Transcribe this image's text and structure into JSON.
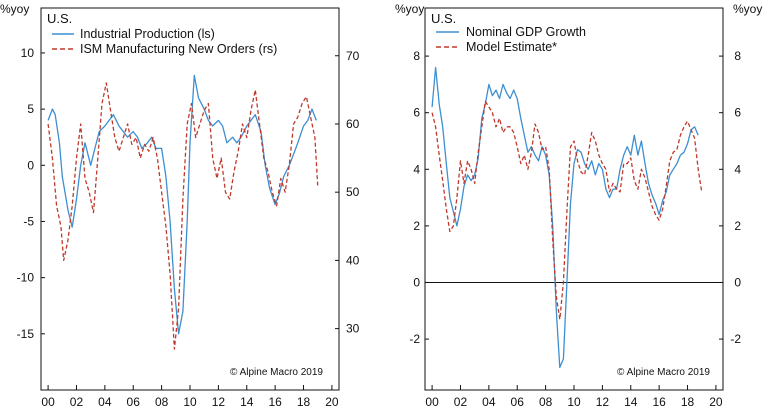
{
  "chart_data": [
    {
      "type": "line",
      "region": "U.S.",
      "credit": "© Alpine Macro 2019",
      "unit_left": "%yoy",
      "x_ticks": [
        "00",
        "02",
        "04",
        "06",
        "08",
        "10",
        "12",
        "14",
        "16",
        "18",
        "20"
      ],
      "xlim": [
        1999.5,
        2020.5
      ],
      "left_axis": {
        "ticks": [
          "10",
          "5",
          "0",
          "-5",
          "-10",
          "-15"
        ],
        "ylim": [
          -20,
          14
        ]
      },
      "right_axis": {
        "ticks": [
          "70",
          "60",
          "50",
          "40",
          "30"
        ],
        "ylim": [
          21,
          77
        ]
      },
      "series": [
        {
          "name": "Industrial Production (ls)",
          "axis": "left",
          "color": "#3d8fd1",
          "style": "solid",
          "x": [
            2000.0,
            2000.3,
            2000.5,
            2000.8,
            2001.0,
            2001.4,
            2001.7,
            2002.0,
            2002.3,
            2002.6,
            2003.0,
            2003.3,
            2003.6,
            2004.0,
            2004.3,
            2004.6,
            2005.0,
            2005.3,
            2005.6,
            2006.0,
            2006.3,
            2006.6,
            2007.0,
            2007.3,
            2007.6,
            2008.0,
            2008.3,
            2008.6,
            2008.9,
            2009.2,
            2009.5,
            2009.8,
            2010.0,
            2010.3,
            2010.6,
            2011.0,
            2011.3,
            2011.6,
            2012.0,
            2012.3,
            2012.6,
            2013.0,
            2013.3,
            2013.6,
            2014.0,
            2014.3,
            2014.6,
            2015.0,
            2015.3,
            2015.6,
            2016.0,
            2016.3,
            2016.6,
            2017.0,
            2017.3,
            2017.6,
            2018.0,
            2018.3,
            2018.6,
            2018.9
          ],
          "values": [
            4.0,
            5.0,
            4.5,
            2.0,
            -1.0,
            -4.0,
            -5.5,
            -3.0,
            0.0,
            2.0,
            0.0,
            1.5,
            3.0,
            3.5,
            4.0,
            4.5,
            3.5,
            3.0,
            2.5,
            3.0,
            2.5,
            1.5,
            2.0,
            2.5,
            1.5,
            1.5,
            -1.0,
            -5.0,
            -11.0,
            -15.0,
            -13.0,
            -5.0,
            2.0,
            8.0,
            6.0,
            5.0,
            4.0,
            3.5,
            4.0,
            3.5,
            2.0,
            2.5,
            2.0,
            2.5,
            3.5,
            4.0,
            4.5,
            3.0,
            0.0,
            -2.0,
            -3.5,
            -2.5,
            -1.0,
            0.0,
            1.0,
            2.0,
            3.5,
            4.0,
            5.0,
            4.0
          ]
        },
        {
          "name": "ISM Manufacturing New Orders (rs)",
          "axis": "right",
          "color": "#c0392b",
          "style": "dashed",
          "x": [
            2000.0,
            2000.3,
            2000.6,
            2000.9,
            2001.1,
            2001.4,
            2001.7,
            2002.0,
            2002.3,
            2002.6,
            2002.9,
            2003.2,
            2003.5,
            2003.8,
            2004.1,
            2004.4,
            2004.7,
            2005.0,
            2005.3,
            2005.6,
            2005.9,
            2006.2,
            2006.5,
            2006.8,
            2007.1,
            2007.4,
            2007.7,
            2008.0,
            2008.3,
            2008.6,
            2008.9,
            2009.2,
            2009.5,
            2009.8,
            2010.1,
            2010.4,
            2010.7,
            2011.0,
            2011.3,
            2011.6,
            2011.9,
            2012.2,
            2012.5,
            2012.8,
            2013.1,
            2013.4,
            2013.7,
            2014.0,
            2014.3,
            2014.6,
            2014.9,
            2015.2,
            2015.5,
            2015.8,
            2016.1,
            2016.4,
            2016.7,
            2017.0,
            2017.3,
            2017.6,
            2017.9,
            2018.2,
            2018.5,
            2018.8,
            2019.0
          ],
          "values": [
            60,
            55,
            48,
            45,
            40,
            43,
            48,
            55,
            60,
            52,
            50,
            47,
            55,
            63,
            66,
            62,
            58,
            56,
            58,
            60,
            57,
            58,
            55,
            57,
            56,
            58,
            55,
            50,
            45,
            38,
            27,
            33,
            49,
            60,
            63,
            58,
            60,
            62,
            63,
            55,
            52,
            55,
            50,
            49,
            53,
            56,
            60,
            58,
            62,
            65,
            60,
            55,
            53,
            50,
            48,
            52,
            50,
            54,
            60,
            61,
            63,
            64,
            61,
            58,
            51
          ]
        }
      ]
    },
    {
      "type": "line",
      "region": "U.S.",
      "credit": "© Alpine Macro 2019",
      "unit_left": "%yoy",
      "unit_right": "%yoy",
      "x_ticks": [
        "00",
        "02",
        "04",
        "06",
        "08",
        "10",
        "12",
        "14",
        "16",
        "18",
        "20"
      ],
      "xlim": [
        1999.5,
        2020.5
      ],
      "left_axis": {
        "ticks": [
          "8",
          "6",
          "4",
          "2",
          "0",
          "-2"
        ],
        "ylim": [
          -3.8,
          9.7
        ]
      },
      "right_axis": {
        "ticks": [
          "8",
          "6",
          "4",
          "2",
          "0",
          "-2"
        ],
        "ylim": [
          -3.8,
          9.7
        ]
      },
      "zero_line": true,
      "series": [
        {
          "name": "Nominal GDP Growth",
          "axis": "left",
          "color": "#3d8fd1",
          "style": "solid",
          "x": [
            2000.0,
            2000.25,
            2000.5,
            2000.75,
            2001.0,
            2001.25,
            2001.5,
            2001.75,
            2002.0,
            2002.25,
            2002.5,
            2002.75,
            2003.0,
            2003.25,
            2003.5,
            2003.75,
            2004.0,
            2004.25,
            2004.5,
            2004.75,
            2005.0,
            2005.25,
            2005.5,
            2005.75,
            2006.0,
            2006.25,
            2006.5,
            2006.75,
            2007.0,
            2007.25,
            2007.5,
            2007.75,
            2008.0,
            2008.25,
            2008.5,
            2008.75,
            2009.0,
            2009.25,
            2009.5,
            2009.75,
            2010.0,
            2010.25,
            2010.5,
            2010.75,
            2011.0,
            2011.25,
            2011.5,
            2011.75,
            2012.0,
            2012.25,
            2012.5,
            2012.75,
            2013.0,
            2013.25,
            2013.5,
            2013.75,
            2014.0,
            2014.25,
            2014.5,
            2014.75,
            2015.0,
            2015.25,
            2015.5,
            2015.75,
            2016.0,
            2016.25,
            2016.5,
            2016.75,
            2017.0,
            2017.25,
            2017.5,
            2017.75,
            2018.0,
            2018.25,
            2018.5,
            2018.75
          ],
          "values": [
            6.2,
            7.6,
            6.3,
            5.5,
            4.2,
            3.0,
            2.5,
            2.0,
            2.6,
            3.4,
            3.8,
            3.6,
            3.8,
            4.4,
            5.8,
            6.3,
            7.0,
            6.6,
            6.8,
            6.5,
            7.0,
            6.7,
            6.5,
            6.8,
            6.5,
            5.8,
            5.2,
            4.6,
            4.8,
            4.5,
            4.3,
            4.8,
            4.5,
            3.8,
            2.0,
            -1.0,
            -3.0,
            -2.7,
            0.0,
            2.8,
            4.2,
            4.7,
            4.6,
            4.2,
            4.0,
            4.3,
            3.8,
            4.2,
            4.0,
            3.3,
            3.0,
            3.3,
            3.3,
            4.0,
            4.5,
            4.8,
            4.5,
            5.2,
            4.5,
            5.0,
            4.2,
            3.5,
            3.1,
            2.8,
            2.4,
            2.9,
            3.2,
            3.8,
            4.0,
            4.2,
            4.5,
            4.6,
            4.9,
            5.4,
            5.5,
            5.2
          ]
        },
        {
          "name": "Model Estimate*",
          "axis": "left",
          "color": "#c0392b",
          "style": "dashed",
          "x": [
            2000.0,
            2000.25,
            2000.5,
            2000.75,
            2001.0,
            2001.25,
            2001.5,
            2001.75,
            2002.0,
            2002.25,
            2002.5,
            2002.75,
            2003.0,
            2003.25,
            2003.5,
            2003.75,
            2004.0,
            2004.25,
            2004.5,
            2004.75,
            2005.0,
            2005.25,
            2005.5,
            2005.75,
            2006.0,
            2006.25,
            2006.5,
            2006.75,
            2007.0,
            2007.25,
            2007.5,
            2007.75,
            2008.0,
            2008.25,
            2008.5,
            2008.75,
            2009.0,
            2009.25,
            2009.5,
            2009.75,
            2010.0,
            2010.25,
            2010.5,
            2010.75,
            2011.0,
            2011.25,
            2011.5,
            2011.75,
            2012.0,
            2012.25,
            2012.5,
            2012.75,
            2013.0,
            2013.25,
            2013.5,
            2013.75,
            2014.0,
            2014.25,
            2014.5,
            2014.75,
            2015.0,
            2015.25,
            2015.5,
            2015.75,
            2016.0,
            2016.25,
            2016.5,
            2016.75,
            2017.0,
            2017.25,
            2017.5,
            2017.75,
            2018.0,
            2018.25,
            2018.5,
            2018.75,
            2019.0
          ],
          "values": [
            6.0,
            5.5,
            4.5,
            3.6,
            2.6,
            1.8,
            2.0,
            3.0,
            4.3,
            3.5,
            4.3,
            4.0,
            3.5,
            4.6,
            5.5,
            6.4,
            6.2,
            6.0,
            5.5,
            5.8,
            5.3,
            5.5,
            5.5,
            5.3,
            4.8,
            4.2,
            4.5,
            4.0,
            4.6,
            5.6,
            5.3,
            4.7,
            4.8,
            4.0,
            1.5,
            -0.5,
            -1.3,
            0.0,
            2.5,
            4.8,
            5.0,
            4.3,
            3.9,
            3.8,
            4.5,
            5.3,
            5.0,
            4.5,
            4.2,
            4.0,
            3.2,
            3.5,
            3.3,
            3.2,
            4.2,
            4.2,
            4.4,
            3.6,
            3.3,
            4.0,
            3.7,
            3.2,
            2.7,
            2.4,
            2.2,
            2.6,
            3.4,
            4.3,
            4.6,
            4.7,
            5.2,
            5.5,
            5.7,
            5.4,
            5.1,
            4.0,
            3.2
          ]
        }
      ]
    }
  ]
}
